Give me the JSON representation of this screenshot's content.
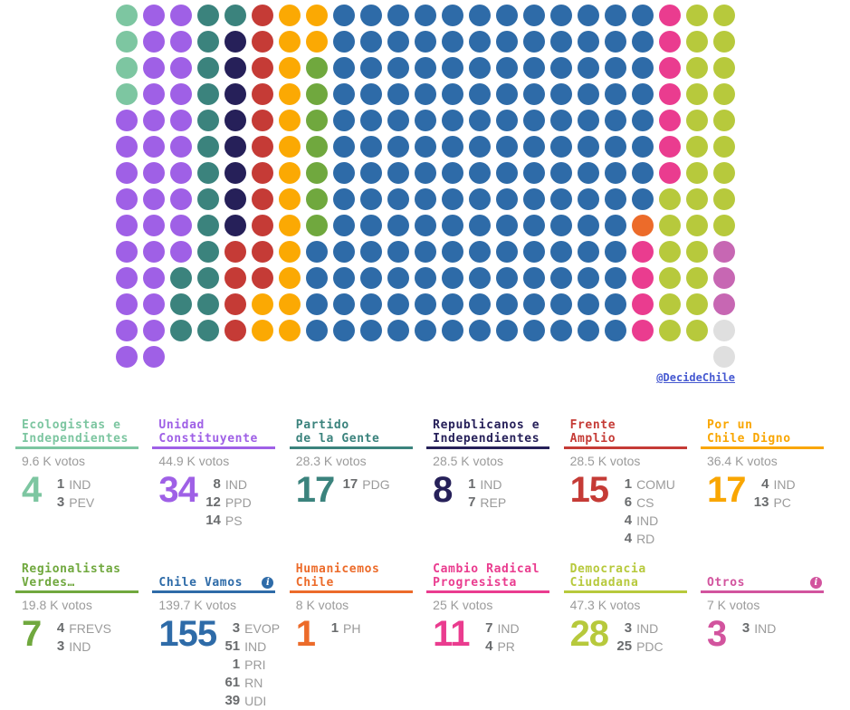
{
  "page": {
    "background": "#ffffff"
  },
  "icons": {
    "info": "i"
  },
  "chart_data": {
    "type": "waffle",
    "unit": "seats",
    "total_seats": 302,
    "columns": 23,
    "column_heights": [
      14,
      14,
      13,
      13,
      13,
      13,
      13,
      13,
      13,
      13,
      13,
      13,
      13,
      13,
      13,
      13,
      13,
      13,
      13,
      13,
      13,
      13,
      14
    ],
    "fill_order": "column-major-top-to-bottom",
    "legend_position": "none",
    "credit": "@DecideChile",
    "parties": [
      {
        "label": "Ecologistas e Independientes",
        "seats": 4,
        "color": "#7dc6a1"
      },
      {
        "label": "Unidad Constituyente",
        "seats": 34,
        "color": "#9f60e6"
      },
      {
        "label": "Partido de la Gente",
        "seats": 17,
        "color": "#3b837d"
      },
      {
        "label": "Republicanos e Independientes",
        "seats": 8,
        "color": "#262059"
      },
      {
        "label": "Frente Amplio",
        "seats": 15,
        "color": "#c53b36"
      },
      {
        "label": "Por un Chile Digno",
        "seats": 17,
        "color": "#fba903"
      },
      {
        "label": "Regionalistas Verdes",
        "seats": 7,
        "color": "#70a83e"
      },
      {
        "label": "Chile Vamos",
        "seats": 155,
        "color": "#2e6ba8"
      },
      {
        "label": "Humanicemos Chile",
        "seats": 1,
        "color": "#ec6b2a"
      },
      {
        "label": "Cambio Radical Progresista",
        "seats": 11,
        "color": "#ea3c8f"
      },
      {
        "label": "Democracia Ciudadana",
        "seats": 28,
        "color": "#b7c93c"
      },
      {
        "label": "Otros",
        "seats": 3,
        "color": "#c767b3"
      },
      {
        "label": "",
        "seats": 2,
        "color": "#dfdfdf"
      }
    ]
  },
  "cards": [
    {
      "title_lines": [
        "Ecologistas e",
        "Independientes"
      ],
      "color": "#7dc6a1",
      "votes": "9.6 K votos",
      "total": "4",
      "breakdown": [
        {
          "seats": "1",
          "party": "IND"
        },
        {
          "seats": "3",
          "party": "PEV"
        }
      ],
      "info_icon": false
    },
    {
      "title_lines": [
        "Unidad",
        "Constituyente"
      ],
      "color": "#9f60e6",
      "votes": "44.9 K votos",
      "total": "34",
      "breakdown": [
        {
          "seats": "8",
          "party": "IND"
        },
        {
          "seats": "12",
          "party": "PPD"
        },
        {
          "seats": "14",
          "party": "PS"
        }
      ],
      "info_icon": false
    },
    {
      "title_lines": [
        "Partido",
        "de la Gente"
      ],
      "color": "#3b837d",
      "votes": "28.3 K votos",
      "total": "17",
      "breakdown": [
        {
          "seats": "17",
          "party": "PDG"
        }
      ],
      "info_icon": false
    },
    {
      "title_lines": [
        "Republicanos e",
        "Independientes"
      ],
      "color": "#262059",
      "votes": "28.5 K votos",
      "total": "8",
      "breakdown": [
        {
          "seats": "1",
          "party": "IND"
        },
        {
          "seats": "7",
          "party": "REP"
        }
      ],
      "info_icon": false
    },
    {
      "title_lines": [
        "Frente",
        "Amplio"
      ],
      "color": "#c53b36",
      "votes": "28.5 K votos",
      "total": "15",
      "breakdown": [
        {
          "seats": "1",
          "party": "COMU"
        },
        {
          "seats": "6",
          "party": "CS"
        },
        {
          "seats": "4",
          "party": "IND"
        },
        {
          "seats": "4",
          "party": "RD"
        }
      ],
      "info_icon": false
    },
    {
      "title_lines": [
        "Por un",
        "Chile Digno"
      ],
      "color": "#f9a602",
      "votes": "36.4 K votos",
      "total": "17",
      "breakdown": [
        {
          "seats": "4",
          "party": "IND"
        },
        {
          "seats": "13",
          "party": "PC"
        }
      ],
      "info_icon": false
    },
    {
      "title_lines": [
        "Regionalistas",
        "Verdes…"
      ],
      "color": "#70a83e",
      "votes": "19.8 K votos",
      "total": "7",
      "breakdown": [
        {
          "seats": "4",
          "party": "FREVS"
        },
        {
          "seats": "3",
          "party": "IND"
        }
      ],
      "info_icon": false
    },
    {
      "title_lines": [
        "Chile Vamos"
      ],
      "color": "#2e6ba8",
      "votes": "139.7 K votos",
      "total": "155",
      "breakdown": [
        {
          "seats": "3",
          "party": "EVOP"
        },
        {
          "seats": "51",
          "party": "IND"
        },
        {
          "seats": "1",
          "party": "PRI"
        },
        {
          "seats": "61",
          "party": "RN"
        },
        {
          "seats": "39",
          "party": "UDI"
        }
      ],
      "info_icon": true
    },
    {
      "title_lines": [
        "Humanicemos",
        "Chile"
      ],
      "color": "#ec6b2a",
      "votes": "8 K votos",
      "total": "1",
      "breakdown": [
        {
          "seats": "1",
          "party": "PH"
        }
      ],
      "info_icon": false
    },
    {
      "title_lines": [
        "Cambio Radical",
        "Progresista"
      ],
      "color": "#ea3c8f",
      "votes": "25 K votos",
      "total": "11",
      "breakdown": [
        {
          "seats": "7",
          "party": "IND"
        },
        {
          "seats": "4",
          "party": "PR"
        }
      ],
      "info_icon": false
    },
    {
      "title_lines": [
        "Democracia",
        "Ciudadana"
      ],
      "color": "#b7c93c",
      "votes": "47.3 K votos",
      "total": "28",
      "breakdown": [
        {
          "seats": "3",
          "party": "IND"
        },
        {
          "seats": "25",
          "party": "PDC"
        }
      ],
      "info_icon": false
    },
    {
      "title_lines": [
        "Otros"
      ],
      "color": "#d2549e",
      "votes": "7 K votos",
      "total": "3",
      "breakdown": [
        {
          "seats": "3",
          "party": "IND"
        }
      ],
      "info_icon": true
    }
  ]
}
